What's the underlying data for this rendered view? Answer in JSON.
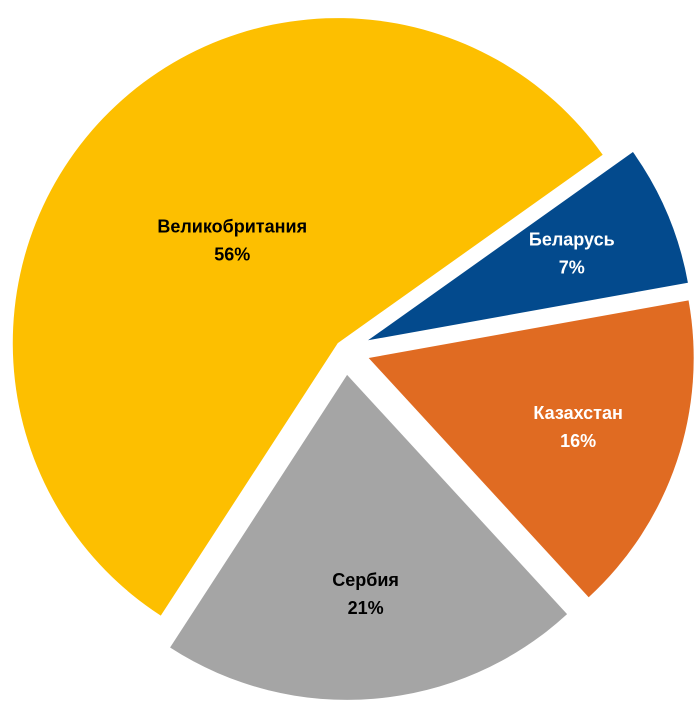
{
  "chart_data": {
    "type": "pie",
    "categories": [
      "Беларусь",
      "Казахстан",
      "Сербия",
      "Великобритания"
    ],
    "values": [
      7,
      16,
      21,
      56
    ],
    "value_labels": [
      "7%",
      "16%",
      "21%",
      "56%"
    ],
    "colors": [
      "#034a8d",
      "#e06b22",
      "#a5a5a5",
      "#fdbf00"
    ]
  }
}
